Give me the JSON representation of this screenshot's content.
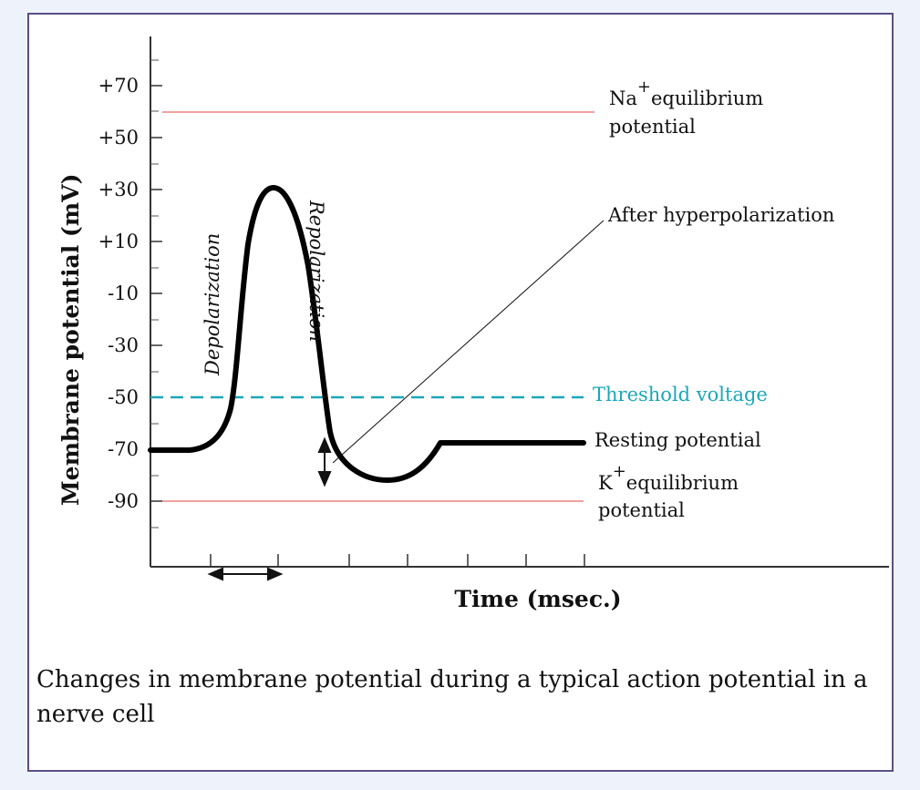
{
  "diagram": {
    "y_axis_label": "Membrane potential (mV)",
    "x_axis_label": "Time (msec.)",
    "y_ticks": [
      "+70",
      "+50",
      "+30",
      "+10",
      "-10",
      "-30",
      "-50",
      "-70",
      "-90"
    ],
    "na_label_1": "Na",
    "na_sup": "+",
    "na_label_2": "equilibrium",
    "na_label_3": "potential",
    "after_label": "After hyperpolarization",
    "threshold_label": "Threshold voltage",
    "resting_label": "Resting potential",
    "k_label_1": "K",
    "k_sup": "+",
    "k_label_2": "equilibrium",
    "k_label_3": "potential",
    "depolarization_label": "Depolarization",
    "repolarization_label": "Repolarization",
    "colors": {
      "trace": "#000000",
      "equilibrium_line": "#f0a0a0",
      "threshold": "#1aa7b8",
      "frame": "#5a4f86"
    }
  },
  "caption": "Changes in membrane potential during a typical action potential in a nerve cell"
}
